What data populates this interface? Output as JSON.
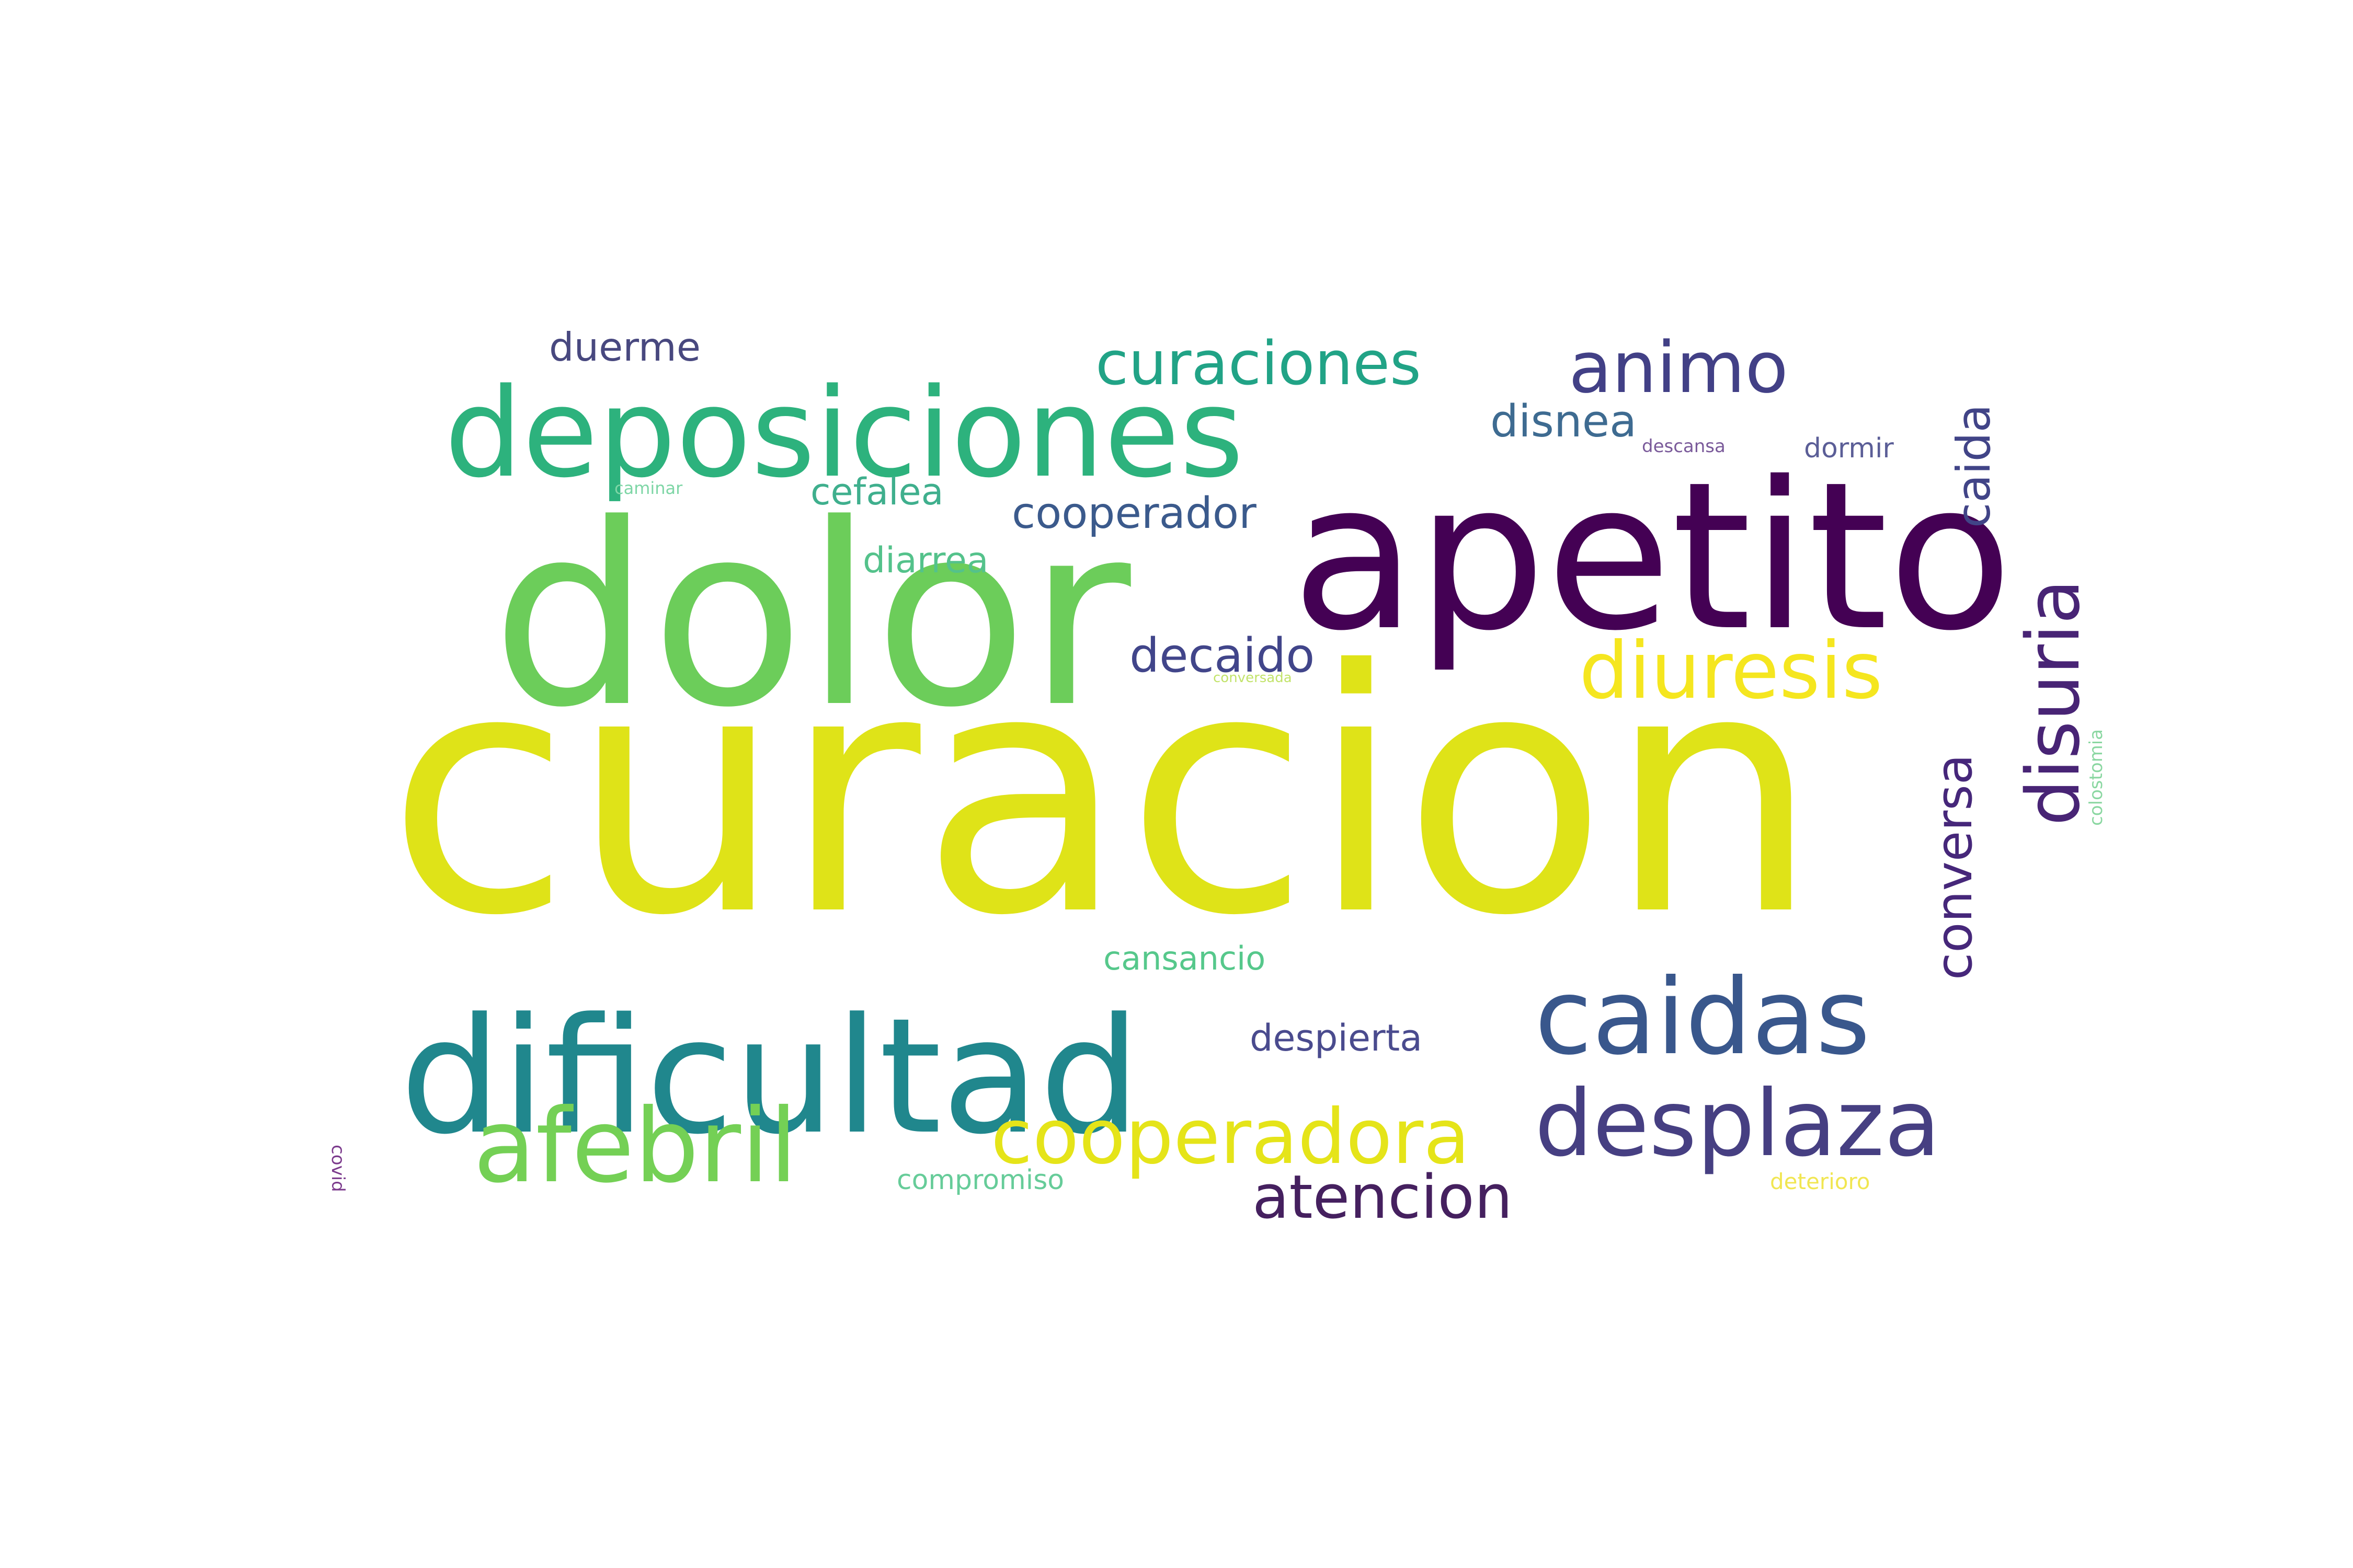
{
  "word_cloud": {
    "words": [
      {
        "text": "curacion",
        "color": "#dfe318"
      },
      {
        "text": "dolor",
        "color": "#6ccd5a"
      },
      {
        "text": "apetito",
        "color": "#440154"
      },
      {
        "text": "dificultad",
        "color": "#20878d"
      },
      {
        "text": "deposiciones",
        "color": "#2db27d"
      },
      {
        "text": "caidas",
        "color": "#39578c"
      },
      {
        "text": "desplaza",
        "color": "#463f82"
      },
      {
        "text": "afebril",
        "color": "#74d055"
      },
      {
        "text": "cooperadora",
        "color": "#e5e419"
      },
      {
        "text": "diuresis",
        "color": "#f5e61f"
      },
      {
        "text": "animo",
        "color": "#424086"
      },
      {
        "text": "curaciones",
        "color": "#21a386"
      },
      {
        "text": "disuria",
        "color": "#482475"
      },
      {
        "text": "atencion",
        "color": "#45205f"
      },
      {
        "text": "conversa",
        "color": "#46277a"
      },
      {
        "text": "caida",
        "color": "#414487"
      },
      {
        "text": "decaido",
        "color": "#41458a"
      },
      {
        "text": "cooperador",
        "color": "#3b5a8c"
      },
      {
        "text": "disnea",
        "color": "#3e6b91"
      },
      {
        "text": "despierta",
        "color": "#4a4b8e"
      },
      {
        "text": "duerme",
        "color": "#48487f"
      },
      {
        "text": "cefalea",
        "color": "#3faf8d"
      },
      {
        "text": "diarrea",
        "color": "#54c28b"
      },
      {
        "text": "cansancio",
        "color": "#56c88b"
      },
      {
        "text": "compromiso",
        "color": "#66cc99"
      },
      {
        "text": "dormir",
        "color": "#5b5e97"
      },
      {
        "text": "deterioro",
        "color": "#f1e651"
      },
      {
        "text": "descansa",
        "color": "#7a5a9a"
      },
      {
        "text": "caminar",
        "color": "#7ed6a6"
      },
      {
        "text": "colostomia",
        "color": "#8ad7a1"
      },
      {
        "text": "conversada",
        "color": "#c2e36a"
      },
      {
        "text": "covid",
        "color": "#7b3a8c"
      },
      {
        "text": "",
        "color": "#aaaaaa"
      }
    ]
  }
}
